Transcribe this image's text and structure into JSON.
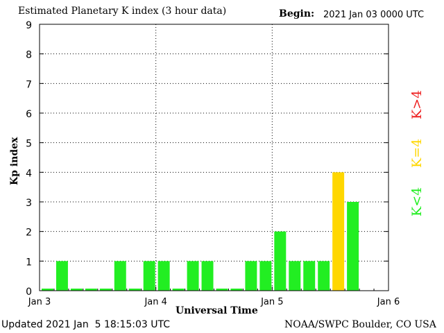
{
  "header": {
    "title": "Estimated Planetary K index (3 hour data)",
    "begin_label": "Begin:",
    "begin_value": "2021 Jan 03 0000 UTC"
  },
  "footer": {
    "updated": "Updated 2021 Jan  5 18:15:03 UTC",
    "source": "NOAA/SWPC Boulder, CO USA"
  },
  "legend": [
    {
      "label": "K<4",
      "color": "#22ee22"
    },
    {
      "label": "K=4",
      "color": "#ffd700"
    },
    {
      "label": "K>4",
      "color": "#ee2222"
    }
  ],
  "chart_data": {
    "type": "bar",
    "title": "Estimated Planetary K index (3 hour data)",
    "xlabel": "Universal Time",
    "ylabel": "Kp index",
    "ylim": [
      0,
      9
    ],
    "yticks": [
      "0",
      "1",
      "2",
      "3",
      "4",
      "5",
      "6",
      "7",
      "8",
      "9"
    ],
    "x_ticks": [
      "Jan 3",
      "Jan 4",
      "Jan 5",
      "Jan 6"
    ],
    "grid": true,
    "values": [
      0,
      1,
      0,
      0,
      0,
      1,
      0,
      1,
      1,
      0,
      1,
      1,
      0,
      0,
      1,
      1,
      2,
      1,
      1,
      1,
      4,
      3
    ],
    "colors": {
      "below": "#22ee22",
      "equal": "#ffd700",
      "above": "#ee2222"
    }
  }
}
